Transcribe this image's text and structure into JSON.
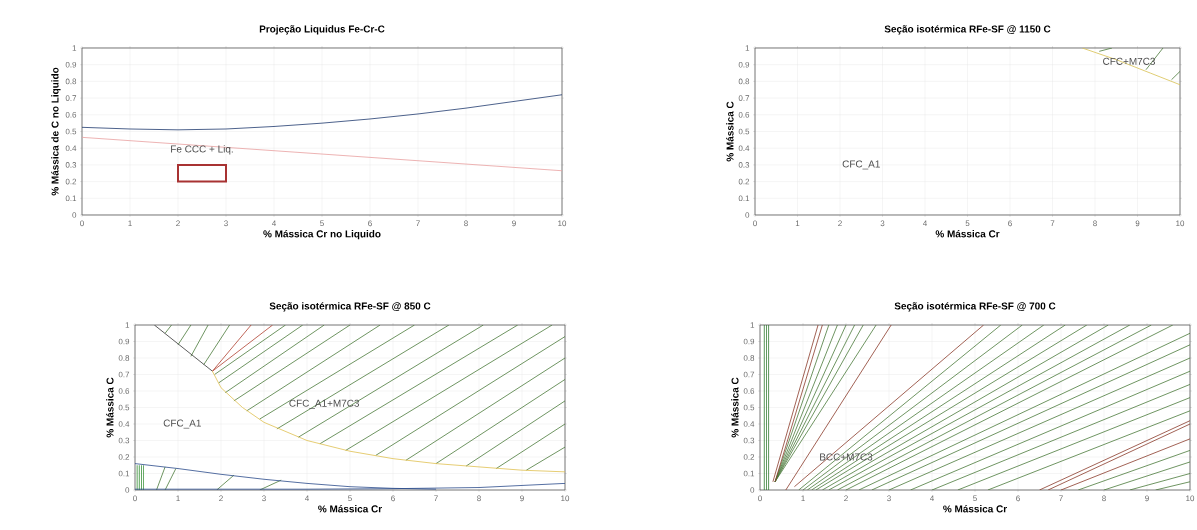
{
  "chart_data": [
    {
      "type": "line",
      "title": "Projeção Liquidus Fe-Cr-C",
      "xlabel": "% Mássica Cr no Liquido",
      "ylabel": "% Mássica de C no Liquido",
      "xlim": [
        0,
        10
      ],
      "ylim": [
        0,
        1
      ],
      "xticks": [
        0,
        1,
        2,
        3,
        4,
        5,
        6,
        7,
        8,
        9,
        10
      ],
      "yticks": [
        0,
        0.1,
        0.2,
        0.3,
        0.4,
        0.5,
        0.6,
        0.7,
        0.8,
        0.9,
        1
      ],
      "grid": true,
      "annotations": [
        "Fe CCC + Liq."
      ],
      "series": [
        {
          "color": "#1f3a6e",
          "x": [
            0,
            1,
            2,
            3,
            4,
            5,
            6,
            7,
            8,
            9,
            10
          ],
          "values": [
            0.525,
            0.515,
            0.51,
            0.515,
            0.53,
            0.55,
            0.575,
            0.605,
            0.64,
            0.68,
            0.72
          ]
        },
        {
          "color": "#e8a0a0",
          "x": [
            0,
            10
          ],
          "values": [
            0.465,
            0.265
          ]
        }
      ]
    },
    {
      "type": "line",
      "title": "Seção isotérmica RFe-SF @ 1150 C",
      "xlabel": "% Mássica Cr",
      "ylabel": "% Mássica C",
      "xlim": [
        0,
        10
      ],
      "ylim": [
        0,
        1
      ],
      "xticks": [
        0,
        1,
        2,
        3,
        4,
        5,
        6,
        7,
        8,
        9,
        10
      ],
      "yticks": [
        0,
        0.1,
        0.2,
        0.3,
        0.4,
        0.5,
        0.6,
        0.7,
        0.8,
        0.9,
        1
      ],
      "grid": true,
      "annotations": [
        "CFC+M7C3",
        "CFC_A1"
      ],
      "series": [
        {
          "color": "#d8c050",
          "x": [
            7.7,
            8.5,
            9.3,
            10
          ],
          "values": [
            1,
            0.93,
            0.85,
            0.78
          ]
        },
        {
          "color": "#4a7a3a",
          "x": [
            8.1,
            8.4
          ],
          "values": [
            0.98,
            1
          ]
        },
        {
          "color": "#4a7a3a",
          "x": [
            9.2,
            9.6
          ],
          "values": [
            0.87,
            1
          ]
        },
        {
          "color": "#4a7a3a",
          "x": [
            9.8,
            10
          ],
          "values": [
            0.81,
            0.86
          ]
        }
      ]
    },
    {
      "type": "line",
      "title": "Seção isotérmica RFe-SF @ 850 C",
      "xlabel": "% Mássica Cr",
      "ylabel": "% Mássica C",
      "xlim": [
        0,
        10
      ],
      "ylim": [
        0,
        1
      ],
      "xticks": [
        0,
        1,
        2,
        3,
        4,
        5,
        6,
        7,
        8,
        9,
        10
      ],
      "yticks": [
        0,
        0.1,
        0.2,
        0.3,
        0.4,
        0.5,
        0.6,
        0.7,
        0.8,
        0.9,
        1
      ],
      "grid": true,
      "annotations": [
        "CFC_A1",
        "CFC_A1+M7C3"
      ],
      "series": [
        {
          "color": "#4a7a3a",
          "x": [
            1.85,
            3.5
          ],
          "values": [
            0.7,
            1
          ]
        },
        {
          "color": "#4a7a3a",
          "x": [
            1.95,
            3.9
          ],
          "values": [
            0.65,
            1
          ]
        },
        {
          "color": "#4a7a3a",
          "x": [
            2.1,
            4.4
          ],
          "values": [
            0.59,
            1
          ]
        },
        {
          "color": "#4a7a3a",
          "x": [
            2.3,
            5
          ],
          "values": [
            0.54,
            1
          ]
        },
        {
          "color": "#4a7a3a",
          "x": [
            2.6,
            5.7
          ],
          "values": [
            0.48,
            1
          ]
        },
        {
          "color": "#4a7a3a",
          "x": [
            2.9,
            6.5
          ],
          "values": [
            0.43,
            1
          ]
        },
        {
          "color": "#4a7a3a",
          "x": [
            3.3,
            7.3
          ],
          "values": [
            0.37,
            1
          ]
        },
        {
          "color": "#4a7a3a",
          "x": [
            3.8,
            8.1
          ],
          "values": [
            0.32,
            1
          ]
        },
        {
          "color": "#4a7a3a",
          "x": [
            4.3,
            8.9
          ],
          "values": [
            0.28,
            1
          ]
        },
        {
          "color": "#4a7a3a",
          "x": [
            4.9,
            9.7
          ],
          "values": [
            0.24,
            1
          ]
        },
        {
          "color": "#4a7a3a",
          "x": [
            5.6,
            10
          ],
          "values": [
            0.21,
            0.93
          ]
        },
        {
          "color": "#4a7a3a",
          "x": [
            6.3,
            10
          ],
          "values": [
            0.18,
            0.8
          ]
        },
        {
          "color": "#4a7a3a",
          "x": [
            7,
            10
          ],
          "values": [
            0.16,
            0.67
          ]
        },
        {
          "color": "#4a7a3a",
          "x": [
            7.7,
            10
          ],
          "values": [
            0.145,
            0.54
          ]
        },
        {
          "color": "#4a7a3a",
          "x": [
            8.4,
            10
          ],
          "values": [
            0.13,
            0.4
          ]
        },
        {
          "color": "#4a7a3a",
          "x": [
            9.1,
            10
          ],
          "values": [
            0.12,
            0.26
          ]
        },
        {
          "color": "#4a7a3a",
          "x": [
            0.7,
            0.85
          ],
          "values": [
            0.95,
            1
          ]
        },
        {
          "color": "#4a7a3a",
          "x": [
            1.0,
            1.3
          ],
          "values": [
            0.88,
            1
          ]
        },
        {
          "color": "#4a7a3a",
          "x": [
            1.3,
            1.7
          ],
          "values": [
            0.81,
            1
          ]
        },
        {
          "color": "#4a7a3a",
          "x": [
            1.6,
            2.2
          ],
          "values": [
            0.76,
            1
          ]
        },
        {
          "color": "#4a7a3a",
          "x": [
            0.5,
            0.7
          ],
          "values": [
            0,
            0.14
          ]
        },
        {
          "color": "#4a7a3a",
          "x": [
            0.7,
            0.95
          ],
          "values": [
            0,
            0.13
          ]
        },
        {
          "color": "#4a7a3a",
          "x": [
            1.9,
            2.3
          ],
          "values": [
            0,
            0.09
          ]
        },
        {
          "color": "#4a7a3a",
          "x": [
            2.9,
            3.4
          ],
          "values": [
            0,
            0.06
          ]
        },
        {
          "color": "#2f8a2f",
          "x": [
            0.05,
            0.05
          ],
          "values": [
            0,
            0.15
          ]
        },
        {
          "color": "#2f8a2f",
          "x": [
            0.1,
            0.1
          ],
          "values": [
            0,
            0.15
          ]
        },
        {
          "color": "#2f8a2f",
          "x": [
            0.15,
            0.15
          ],
          "values": [
            0,
            0.15
          ]
        },
        {
          "color": "#2f8a2f",
          "x": [
            0.2,
            0.2
          ],
          "values": [
            0,
            0.15
          ]
        },
        {
          "color": "#333333",
          "x": [
            0.45,
            1.8
          ],
          "values": [
            1,
            0.72
          ]
        },
        {
          "color": "#b04030",
          "x": [
            2.7,
            1.8,
            3.2
          ],
          "values": [
            1,
            0.72,
            1
          ]
        },
        {
          "color": "#e0c050",
          "x": [
            1.8,
            2,
            2.5,
            3,
            4,
            5,
            6,
            7,
            8,
            9,
            10
          ],
          "values": [
            0.72,
            0.62,
            0.5,
            0.41,
            0.3,
            0.235,
            0.19,
            0.16,
            0.14,
            0.12,
            0.11
          ]
        },
        {
          "color": "#2a4a8a",
          "x": [
            0,
            1,
            2,
            3,
            4,
            5,
            6,
            7
          ],
          "values": [
            0.16,
            0.13,
            0.095,
            0.065,
            0.04,
            0.02,
            0.01,
            0.005
          ]
        },
        {
          "color": "#2a4a8a",
          "x": [
            0,
            2,
            4,
            6,
            8,
            10
          ],
          "values": [
            0.005,
            0.005,
            0.005,
            0.008,
            0.015,
            0.04
          ]
        }
      ]
    },
    {
      "type": "line",
      "title": "Seção isotérmica RFe-SF @ 700 C",
      "xlabel": "% Mássica Cr",
      "ylabel": "% Mássica C",
      "xlim": [
        0,
        10
      ],
      "ylim": [
        0,
        1
      ],
      "xticks": [
        0,
        1,
        2,
        3,
        4,
        5,
        6,
        7,
        8,
        9,
        10
      ],
      "yticks": [
        0,
        0.1,
        0.2,
        0.3,
        0.4,
        0.5,
        0.6,
        0.7,
        0.8,
        0.9,
        1
      ],
      "grid": true,
      "annotations": [
        "BCC+M7C3"
      ],
      "series": [
        {
          "color": "#2f7a2f",
          "x": [
            0.1,
            0.1
          ],
          "values": [
            0,
            1
          ]
        },
        {
          "color": "#2f7a2f",
          "x": [
            0.15,
            0.15
          ],
          "values": [
            0,
            1
          ]
        },
        {
          "color": "#2f7a2f",
          "x": [
            0.2,
            0.2
          ],
          "values": [
            0,
            1
          ]
        },
        {
          "color": "#4a7a3a",
          "x": [
            0.35,
            1.6
          ],
          "values": [
            0.05,
            1
          ]
        },
        {
          "color": "#4a7a3a",
          "x": [
            0.35,
            1.8
          ],
          "values": [
            0.05,
            1
          ]
        },
        {
          "color": "#4a7a3a",
          "x": [
            0.35,
            2.0
          ],
          "values": [
            0.05,
            1
          ]
        },
        {
          "color": "#4a7a3a",
          "x": [
            0.35,
            2.2
          ],
          "values": [
            0.05,
            1
          ]
        },
        {
          "color": "#4a7a3a",
          "x": [
            0.35,
            2.4
          ],
          "values": [
            0.05,
            1
          ]
        },
        {
          "color": "#4a7a3a",
          "x": [
            0.35,
            2.7
          ],
          "values": [
            0.05,
            1
          ]
        },
        {
          "color": "#4a7a3a",
          "x": [
            0.9,
            5.6
          ],
          "values": [
            0,
            1
          ]
        },
        {
          "color": "#4a7a3a",
          "x": [
            1.0,
            6.1
          ],
          "values": [
            0,
            1
          ]
        },
        {
          "color": "#4a7a3a",
          "x": [
            1.1,
            6.6
          ],
          "values": [
            0,
            1
          ]
        },
        {
          "color": "#4a7a3a",
          "x": [
            1.2,
            7.1
          ],
          "values": [
            0,
            1
          ]
        },
        {
          "color": "#4a7a3a",
          "x": [
            1.3,
            7.6
          ],
          "values": [
            0,
            1
          ]
        },
        {
          "color": "#4a7a3a",
          "x": [
            1.45,
            8.1
          ],
          "values": [
            0,
            1
          ]
        },
        {
          "color": "#4a7a3a",
          "x": [
            1.6,
            8.6
          ],
          "values": [
            0,
            1
          ]
        },
        {
          "color": "#4a7a3a",
          "x": [
            1.8,
            9.1
          ],
          "values": [
            0,
            1
          ]
        },
        {
          "color": "#4a7a3a",
          "x": [
            2.0,
            9.6
          ],
          "values": [
            0,
            1
          ]
        },
        {
          "color": "#4a7a3a",
          "x": [
            2.3,
            10
          ],
          "values": [
            0,
            0.95
          ]
        },
        {
          "color": "#4a7a3a",
          "x": [
            2.6,
            10
          ],
          "values": [
            0,
            0.88
          ]
        },
        {
          "color": "#4a7a3a",
          "x": [
            3.0,
            10
          ],
          "values": [
            0,
            0.8
          ]
        },
        {
          "color": "#4a7a3a",
          "x": [
            3.5,
            10
          ],
          "values": [
            0,
            0.72
          ]
        },
        {
          "color": "#4a7a3a",
          "x": [
            4.0,
            10
          ],
          "values": [
            0,
            0.64
          ]
        },
        {
          "color": "#4a7a3a",
          "x": [
            4.6,
            10
          ],
          "values": [
            0,
            0.56
          ]
        },
        {
          "color": "#4a7a3a",
          "x": [
            5.3,
            10
          ],
          "values": [
            0,
            0.48
          ]
        },
        {
          "color": "#4a7a3a",
          "x": [
            7.4,
            10
          ],
          "values": [
            0,
            0.24
          ]
        },
        {
          "color": "#4a7a3a",
          "x": [
            8,
            10
          ],
          "values": [
            0,
            0.17
          ]
        },
        {
          "color": "#4a7a3a",
          "x": [
            8.6,
            10
          ],
          "values": [
            0,
            0.1
          ]
        },
        {
          "color": "#4a7a3a",
          "x": [
            9.2,
            10
          ],
          "values": [
            0,
            0.05
          ]
        },
        {
          "color": "#8a3a2a",
          "x": [
            0.3,
            1.35
          ],
          "values": [
            0.05,
            1
          ]
        },
        {
          "color": "#8a3a2a",
          "x": [
            0.35,
            1.45
          ],
          "values": [
            0.05,
            1
          ]
        },
        {
          "color": "#8a3a2a",
          "x": [
            0.6,
            3.05
          ],
          "values": [
            0,
            1
          ]
        },
        {
          "color": "#8a3a2a",
          "x": [
            0.8,
            5.2
          ],
          "values": [
            0.02,
            1
          ]
        },
        {
          "color": "#8a3a2a",
          "x": [
            6.5,
            10
          ],
          "values": [
            0,
            0.42
          ]
        },
        {
          "color": "#8a3a2a",
          "x": [
            6.7,
            10
          ],
          "values": [
            0,
            0.4
          ]
        },
        {
          "color": "#8a3a2a",
          "x": [
            7.0,
            10
          ],
          "values": [
            0,
            0.31
          ]
        }
      ]
    }
  ]
}
